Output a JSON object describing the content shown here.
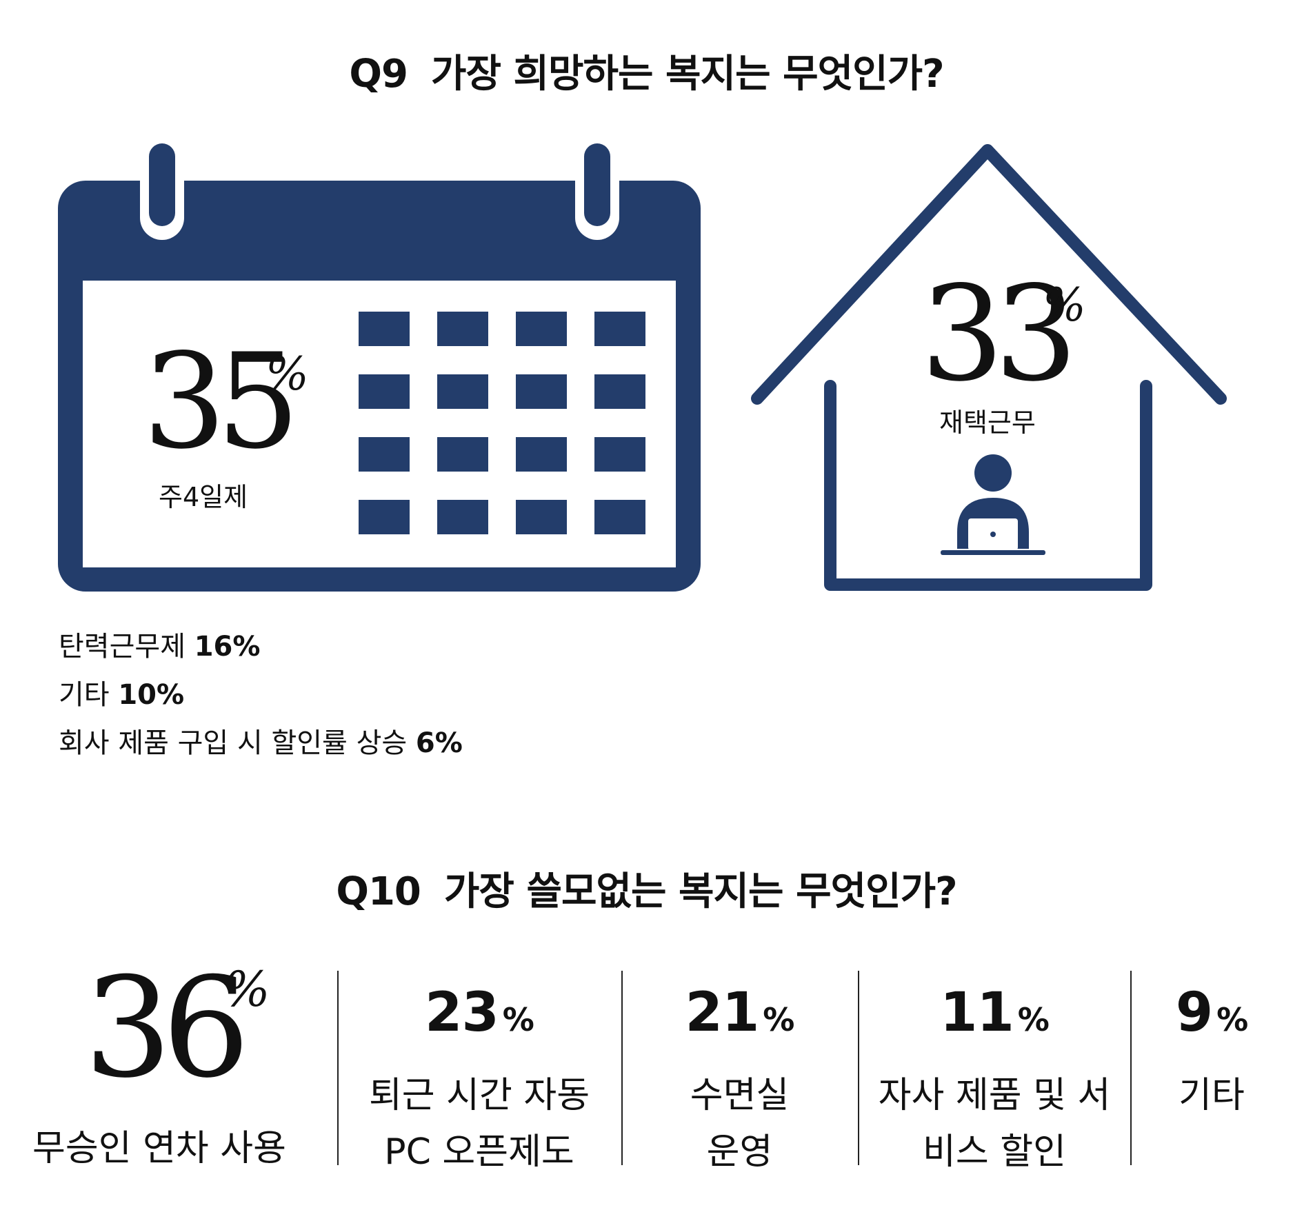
{
  "q9": {
    "number": "Q9",
    "question": "가장 희망하는 복지는 무엇인가?",
    "calendar": {
      "value": "35",
      "unit": "%",
      "label": "주4일제"
    },
    "house": {
      "value": "33",
      "unit": "%",
      "label": "재택근무"
    },
    "others": [
      {
        "label": "탄력근무제",
        "value": "16%"
      },
      {
        "label": "기타",
        "value": "10%"
      },
      {
        "label": "회사 제품 구입 시 할인률 상승",
        "value": "6%"
      }
    ]
  },
  "q10": {
    "number": "Q10",
    "question": "가장 쓸모없는 복지는 무엇인가?",
    "featured": {
      "value": "36",
      "unit": "%",
      "label": "무승인 연차 사용"
    },
    "items": [
      {
        "value": "23",
        "unit": "%",
        "line1": "퇴근 시간 자동",
        "line2": "PC 오픈제도"
      },
      {
        "value": "21",
        "unit": "%",
        "line1": "수면실",
        "line2": "운영"
      },
      {
        "value": "11",
        "unit": "%",
        "line1": "자사 제품 및 서",
        "line2": "비스 할인"
      },
      {
        "value": "9",
        "unit": "%",
        "line1": "기타",
        "line2": ""
      }
    ]
  },
  "colors": {
    "navy": "#233d6b",
    "text": "#111111",
    "divider": "#222222"
  },
  "chart_data": [
    {
      "type": "table",
      "title": "Q9 가장 희망하는 복지는 무엇인가?",
      "categories": [
        "주4일제",
        "재택근무",
        "탄력근무제",
        "기타",
        "회사 제품 구입 시 할인률 상승"
      ],
      "values": [
        35,
        33,
        16,
        10,
        6
      ],
      "unit": "%"
    },
    {
      "type": "table",
      "title": "Q10 가장 쓸모없는 복지는 무엇인가?",
      "categories": [
        "무승인 연차 사용",
        "퇴근 시간 자동 PC 오픈제도",
        "수면실 운영",
        "자사 제품 및 서비스 할인",
        "기타"
      ],
      "values": [
        36,
        23,
        21,
        11,
        9
      ],
      "unit": "%"
    }
  ]
}
